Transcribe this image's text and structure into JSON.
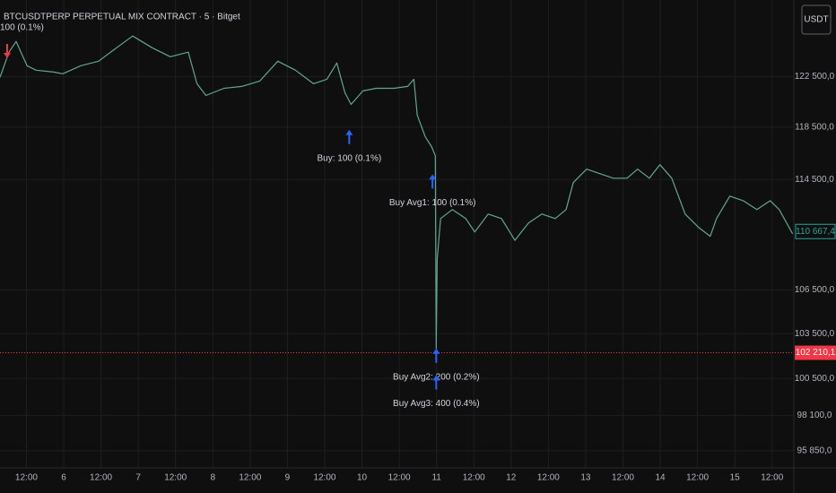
{
  "chart_data": {
    "type": "line",
    "title": "BTCUSDTPERP PERPETUAL MIX CONTRACT · 5 · Bitget",
    "currency_button": "USDT",
    "log_scale": true,
    "grid": true,
    "x": [
      -20.5,
      -17.6,
      -15.3,
      -11.8,
      -8.9,
      -3.2,
      -0.3,
      5.5,
      11.2,
      17.0,
      22.2,
      28.5,
      34.3,
      40.1,
      42.9,
      45.8,
      51.6,
      57.3,
      63.1,
      68.9,
      74.6,
      80.4,
      84.7,
      87.9,
      90.5,
      92.5,
      96.3,
      100.6,
      106.3,
      110.7,
      112.7,
      113.8,
      116.4,
      118.4,
      119.6,
      119.9,
      120.2,
      121.3,
      125.1,
      129.4,
      132.3,
      136.6,
      140.9,
      145.2,
      149.6,
      153.9,
      158.2,
      161.7,
      164.0,
      168.3,
      172.6,
      176.9,
      181.3,
      184.7,
      188.5,
      191.9,
      195.7,
      200.0,
      204.3,
      208.1,
      210.1,
      214.4,
      218.7,
      223.1,
      227.4,
      230.3,
      234.6
    ],
    "series": [
      {
        "color": "#5fa88f",
        "values": [
          122430,
          124470,
          125350,
          123370,
          123010,
          122860,
          122720,
          123370,
          123730,
          124830,
          125790,
          124830,
          124100,
          124470,
          121920,
          120990,
          121560,
          121710,
          122140,
          123730,
          123010,
          121920,
          122280,
          123590,
          121210,
          120280,
          121350,
          121560,
          121560,
          121710,
          122280,
          119430,
          117740,
          117000,
          116300,
          102500,
          108680,
          111610,
          112270,
          111610,
          110630,
          111940,
          111610,
          110030,
          111290,
          111940,
          111610,
          112270,
          114270,
          115280,
          114940,
          114600,
          114600,
          115280,
          114600,
          115620,
          114600,
          111940,
          110970,
          110320,
          111610,
          113260,
          112920,
          112270,
          112920,
          112270,
          110500
        ]
      }
    ],
    "xlim": [
      -20.5,
      235
    ],
    "xticks": [
      {
        "value": -12,
        "label": "12:00"
      },
      {
        "value": 0,
        "label": "6"
      },
      {
        "value": 12,
        "label": "12:00"
      },
      {
        "value": 24,
        "label": "7"
      },
      {
        "value": 36,
        "label": "12:00"
      },
      {
        "value": 48,
        "label": "8"
      },
      {
        "value": 60,
        "label": "12:00"
      },
      {
        "value": 72,
        "label": "9"
      },
      {
        "value": 84,
        "label": "12:00"
      },
      {
        "value": 96,
        "label": "10"
      },
      {
        "value": 108,
        "label": "12:00"
      },
      {
        "value": 120,
        "label": "11"
      },
      {
        "value": 132,
        "label": "12:00"
      },
      {
        "value": 144,
        "label": "12"
      },
      {
        "value": 156,
        "label": "12:00"
      },
      {
        "value": 168,
        "label": "13"
      },
      {
        "value": 180,
        "label": "12:00"
      },
      {
        "value": 192,
        "label": "14"
      },
      {
        "value": 204,
        "label": "12:00"
      },
      {
        "value": 216,
        "label": "15"
      },
      {
        "value": 228,
        "label": "12:00"
      }
    ],
    "ylim": [
      94780,
      128800
    ],
    "yticks": [
      {
        "value": 122500,
        "label": "122 500,0"
      },
      {
        "value": 118500,
        "label": "118 500,0"
      },
      {
        "value": 114500,
        "label": "114 500,0"
      },
      {
        "value": 106500,
        "label": "106 500,0"
      },
      {
        "value": 103500,
        "label": "103 500,0"
      },
      {
        "value": 100500,
        "label": "100 500,0"
      },
      {
        "value": 98100,
        "label": "98 100,0"
      },
      {
        "value": 95850,
        "label": "95 850,0"
      }
    ],
    "last_price": {
      "value": 110667.4,
      "label": "110 667,4",
      "color": "#26a69a"
    },
    "price_line": {
      "value": 102210.1,
      "label": "102 210,1",
      "color": "#f23645"
    },
    "annotations": [
      {
        "text": "100 (0.1%)",
        "x": -18.2,
        "y": 125000,
        "color": "#f23645"
      },
      {
        "text": "Buy: 100 (0.1%)",
        "x": 91.9,
        "y": 118300,
        "color": "#2962ff"
      },
      {
        "text": "Buy Avg1: 100 (0.1%)",
        "x": 118.7,
        "y": 114900,
        "color": "#2962ff"
      },
      {
        "text": "Buy Avg2: 200 (0.2%)",
        "x": 119.9,
        "y": 102500,
        "color": "#2962ff"
      },
      {
        "text": "Buy Avg3: 400 (0.4%)",
        "x": 119.9,
        "y": 100720,
        "color": "#2962ff"
      }
    ]
  }
}
